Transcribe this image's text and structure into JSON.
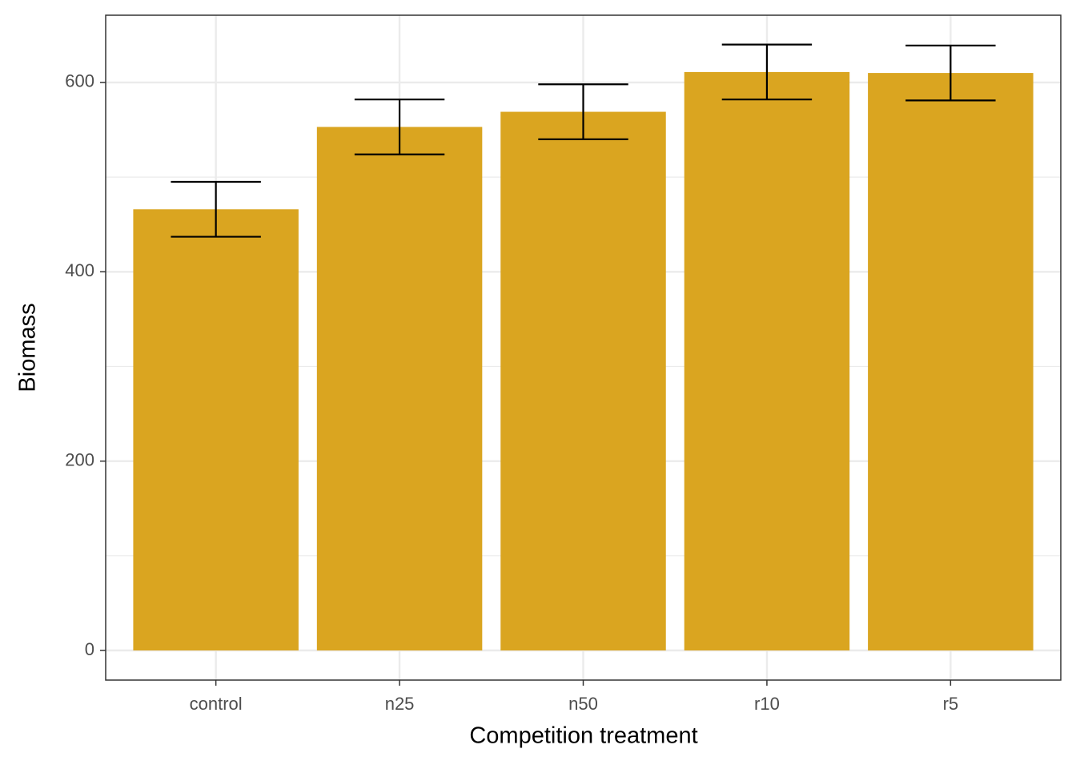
{
  "chart_data": {
    "type": "bar",
    "x_label": "Competition treatment",
    "y_label": "Biomass",
    "categories": [
      "control",
      "n25",
      "n50",
      "r10",
      "r5"
    ],
    "values": [
      466,
      553,
      569,
      611,
      610
    ],
    "errors": [
      29,
      29,
      29,
      29,
      29
    ],
    "color": "#daa520",
    "ylim": [
      -31.3,
      671
    ],
    "yticks": [
      0,
      200,
      400,
      600
    ],
    "y_minor_grid": [
      100,
      300,
      500
    ],
    "grid": true
  }
}
